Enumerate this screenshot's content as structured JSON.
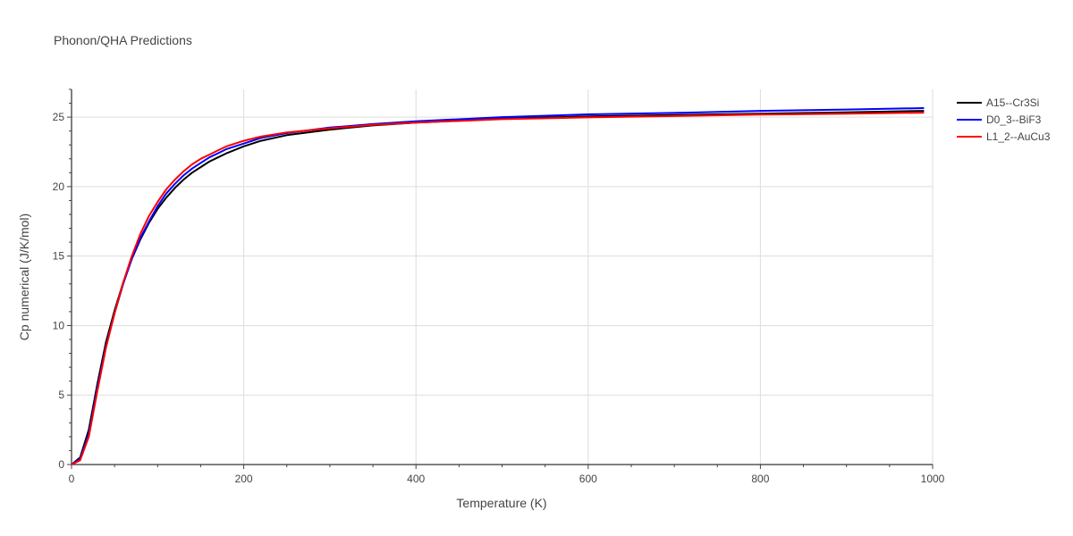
{
  "chart_data": {
    "type": "line",
    "title": "Phonon/QHA Predictions",
    "xlabel": "Temperature (K)",
    "ylabel": "Cp numerical (J/K/mol)",
    "xlim": [
      0,
      1000
    ],
    "ylim": [
      0,
      27
    ],
    "x_ticks": [
      0,
      200,
      400,
      600,
      800,
      1000
    ],
    "y_ticks": [
      0,
      5,
      10,
      15,
      20,
      25
    ],
    "grid": true,
    "legend_position": "top-right",
    "series": [
      {
        "name": "A15--Cr3Si",
        "color": "#000000",
        "x": [
          0,
          10,
          20,
          30,
          40,
          50,
          60,
          70,
          80,
          90,
          100,
          110,
          120,
          130,
          140,
          150,
          160,
          170,
          180,
          200,
          220,
          250,
          300,
          350,
          400,
          500,
          600,
          700,
          800,
          900,
          990
        ],
        "y": [
          0,
          0.5,
          2.5,
          5.8,
          8.8,
          11.1,
          13.1,
          14.8,
          16.2,
          17.4,
          18.4,
          19.2,
          19.9,
          20.5,
          21.0,
          21.4,
          21.8,
          22.1,
          22.4,
          22.9,
          23.3,
          23.7,
          24.1,
          24.4,
          24.6,
          24.9,
          25.05,
          25.15,
          25.25,
          25.35,
          25.45
        ]
      },
      {
        "name": "D0_3--BiF3",
        "color": "#0000ff",
        "x": [
          0,
          10,
          20,
          30,
          40,
          50,
          60,
          70,
          80,
          90,
          100,
          110,
          120,
          130,
          140,
          150,
          160,
          170,
          180,
          200,
          220,
          250,
          300,
          350,
          400,
          500,
          600,
          700,
          800,
          900,
          990
        ],
        "y": [
          0,
          0.4,
          2.2,
          5.5,
          8.5,
          10.9,
          13.0,
          14.8,
          16.3,
          17.5,
          18.6,
          19.5,
          20.2,
          20.8,
          21.3,
          21.7,
          22.1,
          22.4,
          22.7,
          23.1,
          23.5,
          23.85,
          24.25,
          24.5,
          24.7,
          25.0,
          25.2,
          25.3,
          25.45,
          25.55,
          25.65
        ]
      },
      {
        "name": "L1_2--AuCu3",
        "color": "#ff0000",
        "x": [
          0,
          10,
          20,
          30,
          40,
          50,
          60,
          70,
          80,
          90,
          100,
          110,
          120,
          130,
          140,
          150,
          160,
          170,
          180,
          200,
          220,
          250,
          300,
          350,
          400,
          500,
          600,
          700,
          800,
          900,
          990
        ],
        "y": [
          0,
          0.3,
          2.0,
          5.3,
          8.4,
          10.9,
          13.1,
          15.0,
          16.6,
          17.9,
          18.9,
          19.8,
          20.5,
          21.1,
          21.6,
          22.0,
          22.3,
          22.6,
          22.9,
          23.3,
          23.6,
          23.9,
          24.2,
          24.45,
          24.6,
          24.85,
          24.98,
          25.08,
          25.18,
          25.25,
          25.32
        ]
      }
    ]
  }
}
